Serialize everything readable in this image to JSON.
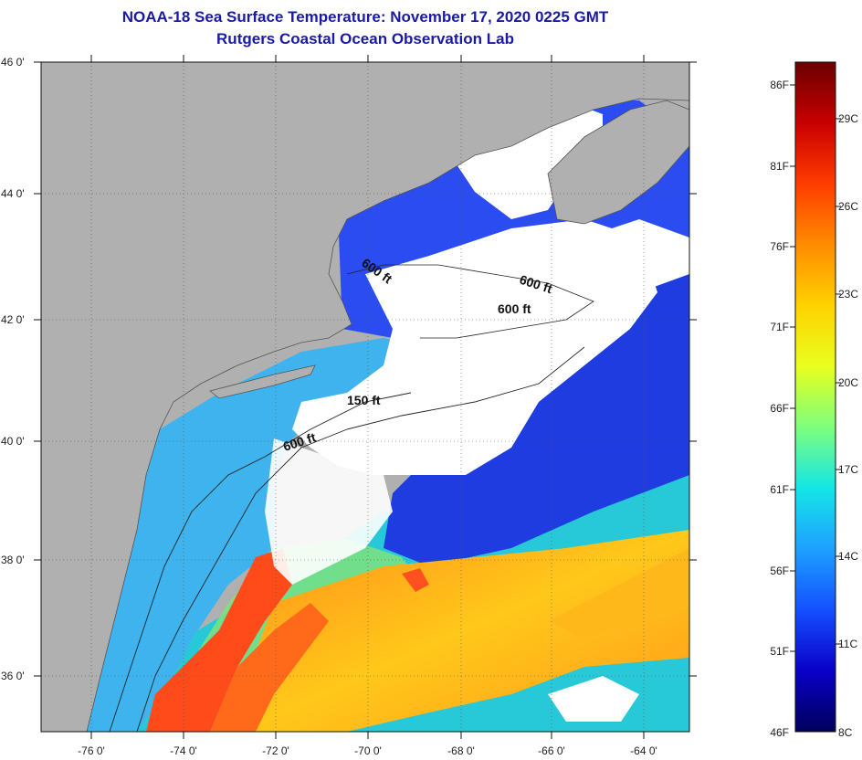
{
  "header": {
    "title": "NOAA-18 Sea Surface Temperature:  November 17, 2020 0225 GMT",
    "subtitle": "Rutgers Coastal Ocean Observation Lab"
  },
  "map": {
    "lat_range": [
      35,
      46
    ],
    "lon_range": [
      -77,
      -63
    ],
    "lat_ticks": [
      "46 0'",
      "44 0'",
      "42 0'",
      "40 0'",
      "38 0'",
      "36 0'"
    ],
    "lon_ticks": [
      "-76 0'",
      "-74 0'",
      "-72 0'",
      "-70 0'",
      "-68 0'",
      "-66 0'",
      "-64 0'"
    ],
    "contour_labels": [
      "600 ft",
      "600 ft",
      "600 ft",
      "150 ft",
      "600 ft"
    ],
    "colors": {
      "land": "#b0b0b0",
      "cloud": "#ffffff",
      "cold_water": "#1f3fe6",
      "shelf_water": "#35b8f0",
      "warm_water": "#ff4a1a",
      "mid_water": "#ffd21a"
    }
  },
  "colorbar": {
    "fahrenheit_labels": [
      "86F",
      "81F",
      "76F",
      "71F",
      "66F",
      "61F",
      "56F",
      "51F",
      "46F"
    ],
    "celsius_labels": [
      "29C",
      "26C",
      "23C",
      "20C",
      "17C",
      "14C",
      "11C",
      "8C"
    ],
    "gradient_colors": [
      "#6b0000",
      "#c80000",
      "#ff3c00",
      "#ff8c00",
      "#ffd200",
      "#e8ff1e",
      "#7dff7d",
      "#14e6e6",
      "#1ea0ff",
      "#1450ff",
      "#0a00c8",
      "#00005a"
    ]
  }
}
